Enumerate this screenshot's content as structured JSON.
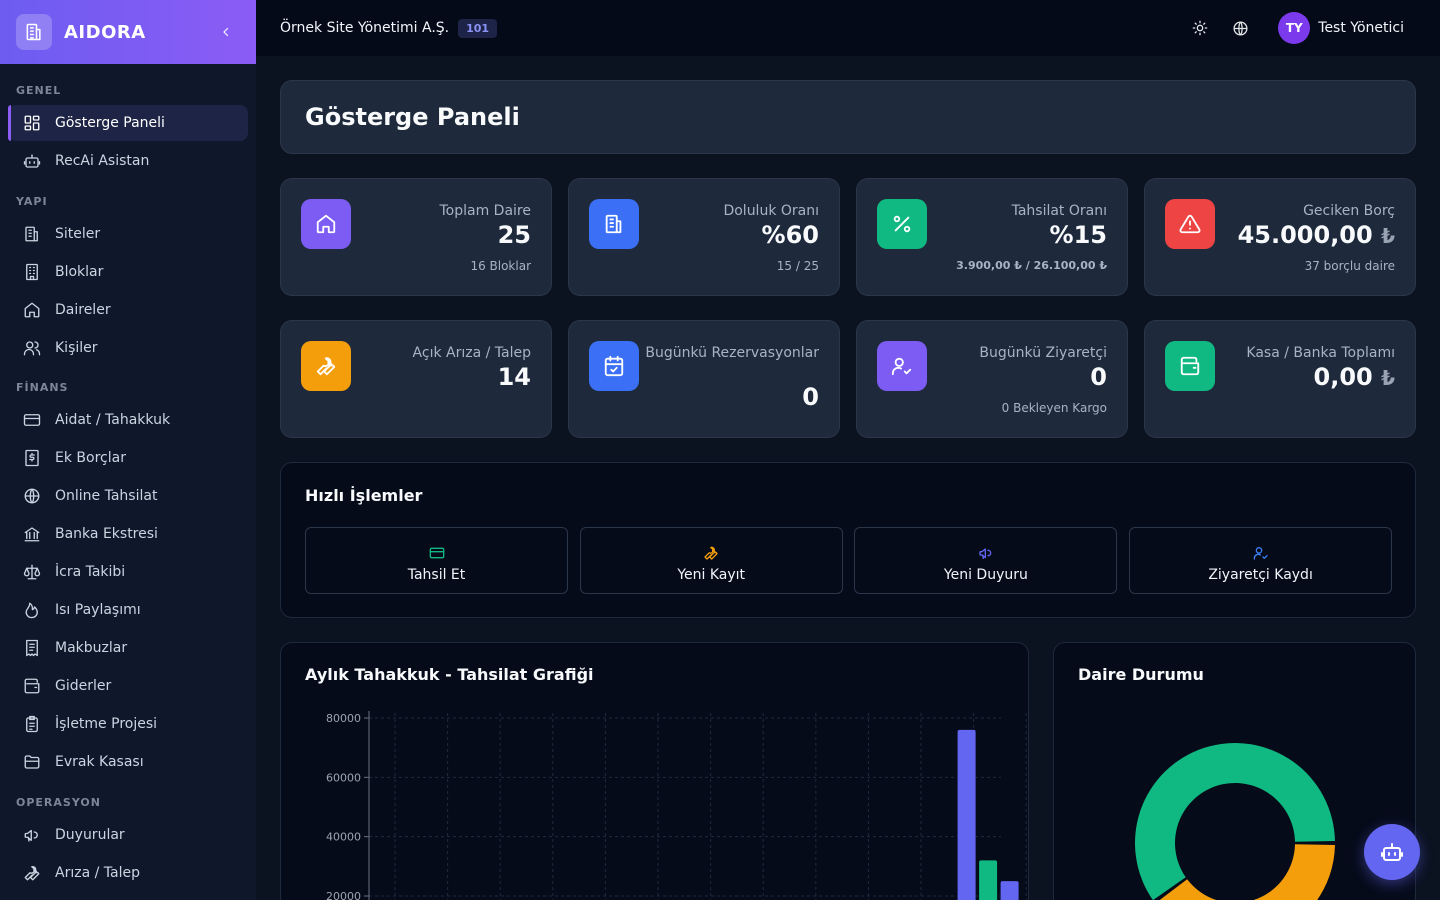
{
  "brand": {
    "name": "AIDORA"
  },
  "sidebar": {
    "sections": [
      {
        "title": "GENEL",
        "items": [
          {
            "label": "Gösterge Paneli",
            "icon": "dashboard-icon"
          },
          {
            "label": "RecAi Asistan",
            "icon": "bot-icon"
          }
        ]
      },
      {
        "title": "YAPI",
        "items": [
          {
            "label": "Siteler",
            "icon": "building-icon"
          },
          {
            "label": "Bloklar",
            "icon": "block-icon"
          },
          {
            "label": "Daireler",
            "icon": "home-icon"
          },
          {
            "label": "Kişiler",
            "icon": "users-icon"
          }
        ]
      },
      {
        "title": "FİNANS",
        "items": [
          {
            "label": "Aidat / Tahakkuk",
            "icon": "credit-card-icon"
          },
          {
            "label": "Ek Borçlar",
            "icon": "dollar-icon"
          },
          {
            "label": "Online Tahsilat",
            "icon": "globe-icon"
          },
          {
            "label": "Banka Ekstresi",
            "icon": "bank-icon"
          },
          {
            "label": "İcra Takibi",
            "icon": "scale-icon"
          },
          {
            "label": "Isı Paylaşımı",
            "icon": "flame-icon"
          },
          {
            "label": "Makbuzlar",
            "icon": "receipt-icon"
          },
          {
            "label": "Giderler",
            "icon": "wallet-icon"
          },
          {
            "label": "İşletme Projesi",
            "icon": "clipboard-icon"
          },
          {
            "label": "Evrak Kasası",
            "icon": "folder-icon"
          }
        ]
      },
      {
        "title": "OPERASYON",
        "items": [
          {
            "label": "Duyurular",
            "icon": "megaphone-icon"
          },
          {
            "label": "Arıza / Talep",
            "icon": "wrench-icon"
          }
        ]
      }
    ]
  },
  "topbar": {
    "org_name": "Örnek Site Yönetimi A.Ş.",
    "org_badge": "101",
    "user_initials": "TY",
    "user_name": "Test Yönetici"
  },
  "page": {
    "title": "Gösterge Paneli"
  },
  "stats": [
    {
      "label": "Toplam Daire",
      "value": "25",
      "sub": "16 Bloklar",
      "color": "#7c5cf3"
    },
    {
      "label": "Doluluk Oranı",
      "value": "%60",
      "sub": "15 / 25",
      "color": "#3b6ff5"
    },
    {
      "label": "Tahsilat Oranı",
      "value": "%15",
      "sub": "3.900,00 ₺ / 26.100,00 ₺",
      "color": "#10b981"
    },
    {
      "label": "Geciken Borç",
      "value": "45.000,00",
      "currency": "₺",
      "sub": "37 borçlu daire",
      "color": "#ef4444"
    },
    {
      "label": "Açık Arıza / Talep",
      "value": "14",
      "sub": "",
      "color": "#f59e0b"
    },
    {
      "label": "Bugünkü Rezervasyonlar",
      "value": "0",
      "sub": "",
      "color": "#3b6ff5"
    },
    {
      "label": "Bugünkü Ziyaretçi",
      "value": "0",
      "sub": "0 Bekleyen Kargo",
      "color": "#7c5cf3"
    },
    {
      "label": "Kasa / Banka Toplamı",
      "value": "0,00",
      "currency": "₺",
      "sub": "",
      "color": "#10b981"
    }
  ],
  "quick_actions": {
    "title": "Hızlı İşlemler",
    "buttons": [
      {
        "label": "Tahsil Et",
        "icon": "credit-card-icon",
        "color": "#10b981"
      },
      {
        "label": "Yeni Kayıt",
        "icon": "wrench-icon",
        "color": "#f59e0b"
      },
      {
        "label": "Yeni Duyuru",
        "icon": "megaphone-icon",
        "color": "#6366f1"
      },
      {
        "label": "Ziyaretçi Kaydı",
        "icon": "user-check-icon",
        "color": "#3b82f6"
      }
    ]
  },
  "chart_data": [
    {
      "type": "bar",
      "title": "Aylık Tahakkuk - Tahsilat Grafiği",
      "ylim": [
        0,
        80000
      ],
      "yticks": [
        "80000",
        "60000",
        "40000",
        "20000"
      ],
      "series": [
        {
          "values": [
            0,
            0,
            0,
            0,
            0,
            0,
            0,
            0,
            0,
            0,
            0,
            76000
          ],
          "color": "#6366f1"
        },
        {
          "values": [
            0,
            0,
            0,
            0,
            0,
            0,
            0,
            0,
            0,
            0,
            0,
            32000
          ],
          "color": "#10b981"
        },
        {
          "values": [
            0,
            0,
            0,
            0,
            0,
            0,
            0,
            0,
            0,
            0,
            0,
            25000
          ],
          "color": "#6366f1"
        }
      ],
      "grid": true
    },
    {
      "type": "pie",
      "title": "Daire Durumu",
      "slices": [
        {
          "value": 15,
          "color": "#10b981"
        },
        {
          "value": 10,
          "color": "#f59e0b"
        }
      ]
    }
  ]
}
